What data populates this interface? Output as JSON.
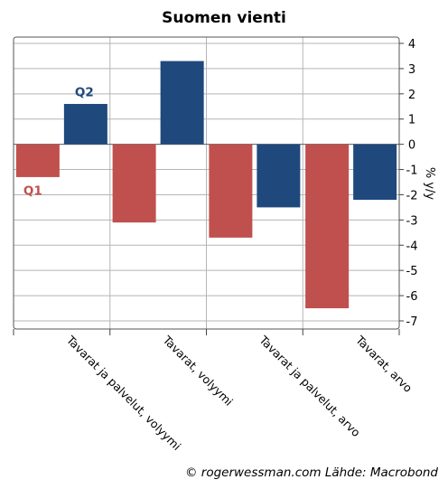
{
  "chart_data": {
    "type": "bar",
    "title": "Suomen vienti",
    "ylabel": "% y/y",
    "categories": [
      "Tavarat ja palvelut, volyymi",
      "Tavarat, volyymi",
      "Tavarat ja palvelut, arvo",
      "Tavarat, arvo"
    ],
    "series": [
      {
        "name": "Q1",
        "color": "#c0504d",
        "values": [
          -1.3,
          -3.1,
          -3.7,
          -6.5
        ]
      },
      {
        "name": "Q2",
        "color": "#1f497d",
        "values": [
          1.6,
          3.3,
          -2.5,
          -2.2
        ]
      }
    ],
    "ylim": [
      -7,
      4
    ],
    "yticks": [
      4,
      3,
      2,
      1,
      0,
      -1,
      -2,
      -3,
      -4,
      -5,
      -6,
      -7
    ],
    "grid": true,
    "y_axis_side": "right"
  },
  "footer": "© rogerwessman.com Lähde: Macrobond"
}
